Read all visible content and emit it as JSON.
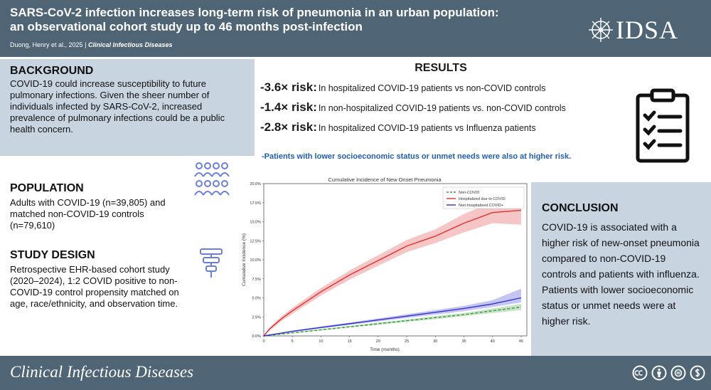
{
  "header": {
    "title_line1": "SARS-CoV-2 infection increases long-term risk of pneumonia in an urban population:",
    "title_line2": "an observational cohort study up to 46 months post-infection",
    "authors": "Duong, Henry et al., 2025",
    "separator": "|",
    "journal_short": "Clinical Infectious Diseases",
    "logo_text": "IDSA"
  },
  "background": {
    "heading": "BACKGROUND",
    "text": "COVID-19 could increase susceptibility to future pulmonary infections. Given the sheer number of individuals infected by SARS-CoV-2, increased prevalence of pulmonary infections could be a public health concern."
  },
  "results": {
    "heading": "RESULTS",
    "rows": [
      {
        "risk": "-3.6× risk:",
        "desc": "In hospitalized COVID-19 patients  vs non-COVID controls"
      },
      {
        "risk": "-1.4× risk:",
        "desc": "In non-hospitalized COVID-19 patients vs. non-COVID controls"
      },
      {
        "risk": "-2.8× risk:",
        "desc": "In hospitalized COVID-19 patients vs  Influenza patients"
      }
    ],
    "note": "-Patients with lower socioeconomic status or unmet needs were also at higher risk."
  },
  "population": {
    "heading": "POPULATION",
    "text": "Adults with COVID-19 (n=39,805) and matched non-COVID-19 controls (n=79,610)"
  },
  "study_design": {
    "heading": "STUDY DESIGN",
    "text": "Retrospective EHR-based cohort study (2020–2024), 1:2 COVID positive to non-COVID-19 control propensity matched on age, race/ethnicity, and observation time."
  },
  "conclusion": {
    "heading": "CONCLUSION",
    "text": "COVID-19 is associated with a higher risk of new-onset pneumonia compared to non-COVID-19 controls and patients with influenza. Patients with lower socioeconomic status or unmet needs were at higher risk."
  },
  "footer": {
    "journal": "Clinical Infectious Diseases"
  },
  "chart_data": {
    "type": "line",
    "title": "Cumulative Incidence of New Onset Pneumonia",
    "xlabel": "Time (months)",
    "ylabel": "Cumulative Incidence (%)",
    "xlim": [
      0,
      46
    ],
    "ylim": [
      0,
      20
    ],
    "x_ticks": [
      0,
      5,
      10,
      15,
      20,
      25,
      30,
      35,
      40,
      45
    ],
    "x_tick_labels": [
      "0",
      "5",
      "10",
      "15",
      "20",
      "25",
      "30",
      "35",
      "40",
      "45"
    ],
    "y_ticks": [
      0,
      2.5,
      5,
      7.5,
      10,
      12.5,
      15,
      17.5,
      20
    ],
    "y_tick_labels": [
      "0.0%",
      "2.5%",
      "5.0%",
      "7.5%",
      "10.0%",
      "12.5%",
      "15.0%",
      "17.5%",
      "20.0%"
    ],
    "legend_position": "top-right",
    "series": [
      {
        "name": "Non-COVID",
        "color": "#3a9a3a",
        "style": "dashed",
        "x": [
          0,
          5,
          10,
          15,
          20,
          25,
          30,
          35,
          40,
          45
        ],
        "y": [
          0,
          0.4,
          0.8,
          1.2,
          1.6,
          2.0,
          2.4,
          2.8,
          3.3,
          3.8
        ],
        "ci_low": [
          0,
          0.35,
          0.7,
          1.1,
          1.45,
          1.85,
          2.2,
          2.6,
          3.0,
          3.4
        ],
        "ci_high": [
          0,
          0.45,
          0.9,
          1.3,
          1.75,
          2.15,
          2.6,
          3.0,
          3.6,
          4.2
        ]
      },
      {
        "name": "Hospitalized due to COVID",
        "color": "#e03030",
        "style": "solid",
        "x": [
          0,
          1,
          3,
          5,
          10,
          15,
          20,
          25,
          30,
          35,
          40,
          45
        ],
        "y": [
          0,
          0.9,
          2.2,
          3.3,
          5.8,
          8.0,
          9.9,
          11.8,
          13.1,
          14.8,
          16.2,
          16.5
        ],
        "ci_low": [
          0,
          0.7,
          1.9,
          2.9,
          5.3,
          7.4,
          9.2,
          11.0,
          12.2,
          13.6,
          14.8,
          14.6
        ],
        "ci_high": [
          0,
          1.1,
          2.5,
          3.7,
          6.3,
          8.6,
          10.6,
          12.6,
          14.0,
          16.0,
          17.6,
          18.4
        ]
      },
      {
        "name": "Non-hospitalized COVID+",
        "color": "#3030d0",
        "style": "solid",
        "x": [
          0,
          5,
          10,
          15,
          20,
          25,
          30,
          35,
          40,
          45
        ],
        "y": [
          0,
          0.6,
          1.1,
          1.6,
          2.1,
          2.6,
          3.1,
          3.6,
          4.2,
          5.0
        ],
        "ci_low": [
          0,
          0.5,
          1.0,
          1.45,
          1.9,
          2.35,
          2.8,
          3.25,
          3.8,
          4.4
        ],
        "ci_high": [
          0,
          0.7,
          1.25,
          1.75,
          2.3,
          2.85,
          3.4,
          3.95,
          4.7,
          6.2
        ]
      }
    ]
  }
}
